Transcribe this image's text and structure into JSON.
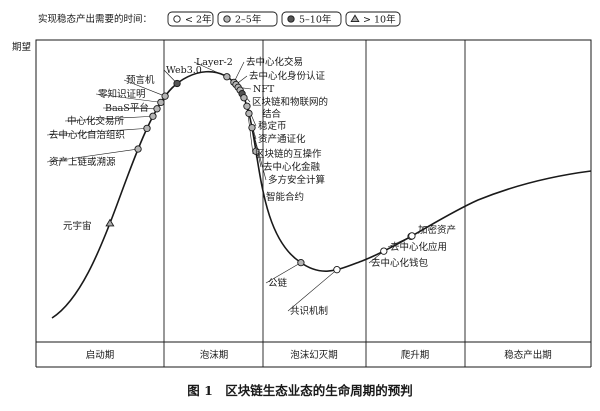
{
  "chart_data": {
    "type": "line",
    "title": "",
    "caption": "图 1　区块链生态业态的生命周期的预判",
    "ylabel": "期望",
    "xlabel": "",
    "legend": {
      "title": "实现稳态产出需要的时间：",
      "placement": "top-left",
      "items": [
        {
          "key": "lt2",
          "label": "< 2年",
          "marker": "circle-open"
        },
        {
          "key": "2to5",
          "label": "2–5年",
          "marker": "circle-gray"
        },
        {
          "key": "5to10",
          "label": "5–10年",
          "marker": "circle-dark"
        },
        {
          "key": "gt10",
          "label": "> 10年",
          "marker": "triangle"
        }
      ]
    },
    "phases": [
      "启动期",
      "泡沫期",
      "泡沫幻灭期",
      "爬升期",
      "稳态产出期"
    ],
    "colors": {
      "curve": "#1a1a1a",
      "open": "#ffffff",
      "gray": "#b5b5b5",
      "dark": "#555555",
      "triangle": "#aaaaaa"
    },
    "series": [
      {
        "label": "元宇宙",
        "time": "gt10"
      },
      {
        "label": "资产上链或溯源",
        "time": "2to5"
      },
      {
        "label": "去中心化自治组织",
        "time": "2to5"
      },
      {
        "label": "中心化交易所",
        "time": "2to5"
      },
      {
        "label": "BaaS平台",
        "time": "2to5"
      },
      {
        "label": "零知识证明",
        "time": "2to5"
      },
      {
        "label": "预言机",
        "time": "2to5"
      },
      {
        "label": "Web3.0",
        "time": "5to10"
      },
      {
        "label": "Layer-2",
        "time": "2to5"
      },
      {
        "label": "去中心化交易",
        "time": "2to5"
      },
      {
        "label": "去中心化身份认证",
        "time": "2to5"
      },
      {
        "label": "NFT",
        "time": "2to5"
      },
      {
        "label": "区块链和物联网的结合",
        "time": "2to5"
      },
      {
        "label": "稳定币",
        "time": "5to10"
      },
      {
        "label": "资产通证化",
        "time": "2to5"
      },
      {
        "label": "区块链的互操作",
        "time": "2to5"
      },
      {
        "label": "去中心化金融",
        "time": "2to5"
      },
      {
        "label": "多方安全计算",
        "time": "2to5"
      },
      {
        "label": "智能合约",
        "time": "2to5"
      },
      {
        "label": "公链",
        "time": "2to5"
      },
      {
        "label": "共识机制",
        "time": "lt2"
      },
      {
        "label": "去中心化钱包",
        "time": "lt2"
      },
      {
        "label": "去中心化应用",
        "time": "lt2"
      },
      {
        "label": "加密资产",
        "time": "lt2"
      }
    ]
  }
}
